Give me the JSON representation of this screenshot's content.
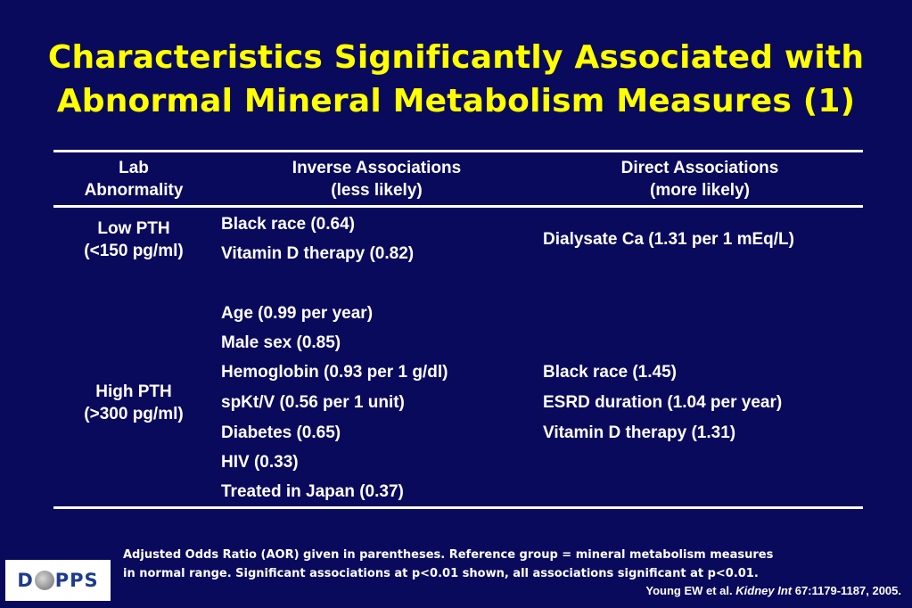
{
  "title": {
    "line1": "Characteristics Significantly Associated with",
    "line2": "Abnormal Mineral Metabolism Measures (1)"
  },
  "table": {
    "headers": {
      "col1_line1": "Lab",
      "col1_line2": "Abnormality",
      "col2_line1": "Inverse Associations",
      "col2_line2": "(less likely)",
      "col3_line1": "Direct Associations",
      "col3_line2": "(more likely)"
    },
    "rows": [
      {
        "label_line1": "Low PTH",
        "label_line2": "(<150 pg/ml)",
        "inverse": [
          "Black race (0.64)",
          "Vitamin D therapy (0.82)"
        ],
        "direct": [
          "Dialysate Ca (1.31 per 1 mEq/L)"
        ]
      },
      {
        "label_line1": "High PTH",
        "label_line2": "(>300 pg/ml)",
        "inverse": [
          "Age (0.99 per year)",
          "Male sex (0.85)",
          "Hemoglobin (0.93 per 1 g/dl)",
          "spKt/V (0.56 per 1 unit)",
          "Diabetes (0.65)",
          "HIV (0.33)",
          "Treated in Japan (0.37)"
        ],
        "direct": [
          "Black race (1.45)",
          "ESRD duration (1.04 per year)",
          "Vitamin D therapy (1.31)"
        ]
      }
    ]
  },
  "footnote": {
    "line1": "Adjusted Odds Ratio (AOR) given in parentheses.  Reference group = mineral metabolism measures",
    "line2": "in normal range.  Significant associations at p<0.01 shown, all associations significant at p<0.01."
  },
  "citation": {
    "authors": "Young EW et al.",
    "journal": "Kidney Int",
    "ref": "67:1179-1187, 2005."
  },
  "logo": {
    "part1": "D",
    "part2": "PPS"
  }
}
